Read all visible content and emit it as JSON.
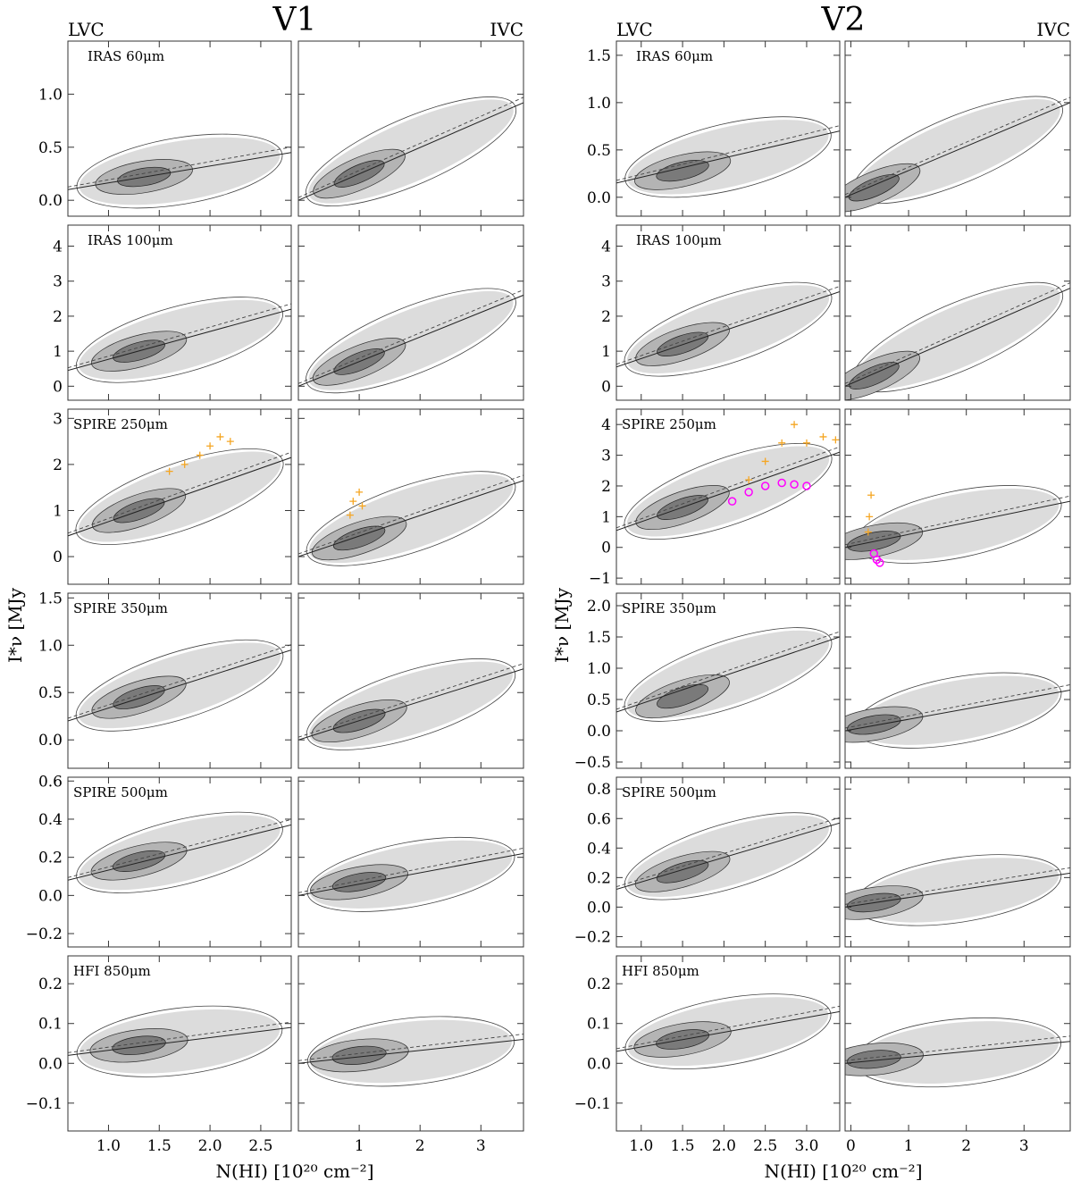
{
  "figure": {
    "titles": [
      "V1",
      "V2"
    ],
    "lvc_label": "LVC",
    "ivc_label": "IVC",
    "ylabel": "I*ν [MJy",
    "xlabel": "N(HI)  [10²⁰ cm⁻²]"
  },
  "chart_data": [
    {
      "type": "scatter",
      "group": "V1",
      "columns": [
        "LVC",
        "IVC"
      ],
      "x_ticks": {
        "LVC": [
          "1.0",
          "1.5",
          "2.0",
          "2.5"
        ],
        "IVC": [
          "1",
          "2",
          "3"
        ]
      },
      "x_range": {
        "LVC": [
          0.6,
          2.8
        ],
        "IVC": [
          0.0,
          3.7
        ]
      },
      "rows": [
        {
          "band": "IRAS 60μm",
          "ylim": [
            -0.15,
            1.5
          ],
          "yticks": [
            "0.0",
            "0.5",
            "1.0"
          ],
          "LVC": {
            "fit": [
              [
                0.6,
                0.1
              ],
              [
                2.8,
                0.45
              ]
            ],
            "peak": [
              1.35,
              0.22
            ]
          },
          "IVC": {
            "fit": [
              [
                0.0,
                0.0
              ],
              [
                3.7,
                0.92
              ]
            ],
            "peak": [
              1.0,
              0.25
            ]
          }
        },
        {
          "band": "IRAS 100μm",
          "ylim": [
            -0.4,
            4.6
          ],
          "yticks": [
            "0",
            "1",
            "2",
            "3",
            "4"
          ],
          "LVC": {
            "fit": [
              [
                0.6,
                0.45
              ],
              [
                2.8,
                2.2
              ]
            ],
            "peak": [
              1.3,
              1.0
            ]
          },
          "IVC": {
            "fit": [
              [
                0.0,
                0.0
              ],
              [
                3.7,
                2.6
              ]
            ],
            "peak": [
              1.0,
              0.7
            ]
          }
        },
        {
          "band": "SPIRE 250μm",
          "ylim": [
            -0.6,
            3.2
          ],
          "yticks": [
            "0",
            "1",
            "2",
            "3"
          ],
          "LVC": {
            "fit": [
              [
                0.6,
                0.45
              ],
              [
                2.8,
                2.15
              ]
            ],
            "peak": [
              1.3,
              1.0
            ],
            "scatter_orange": {
              "x": [
                1.6,
                1.75,
                1.9,
                2.0,
                2.1,
                2.2
              ],
              "y": [
                1.85,
                2.0,
                2.2,
                2.4,
                2.6,
                2.5
              ]
            }
          },
          "IVC": {
            "fit": [
              [
                0.0,
                0.0
              ],
              [
                3.7,
                1.65
              ]
            ],
            "peak": [
              1.0,
              0.4
            ],
            "scatter_orange": {
              "x": [
                0.85,
                0.9,
                1.0,
                1.05
              ],
              "y": [
                0.9,
                1.2,
                1.4,
                1.1
              ]
            }
          }
        },
        {
          "band": "SPIRE 350μm",
          "ylim": [
            -0.3,
            1.55
          ],
          "yticks": [
            "0.0",
            "0.5",
            "1.0",
            "1.5"
          ],
          "LVC": {
            "fit": [
              [
                0.6,
                0.2
              ],
              [
                2.8,
                0.95
              ]
            ],
            "peak": [
              1.3,
              0.45
            ]
          },
          "IVC": {
            "fit": [
              [
                0.0,
                0.0
              ],
              [
                3.7,
                0.75
              ]
            ],
            "peak": [
              1.0,
              0.2
            ]
          }
        },
        {
          "band": "SPIRE 500μm",
          "ylim": [
            -0.27,
            0.62
          ],
          "yticks": [
            "−0.2",
            "0.0",
            "0.2",
            "0.4",
            "0.6"
          ],
          "LVC": {
            "fit": [
              [
                0.6,
                0.08
              ],
              [
                2.8,
                0.37
              ]
            ],
            "peak": [
              1.3,
              0.18
            ]
          },
          "IVC": {
            "fit": [
              [
                0.0,
                0.0
              ],
              [
                3.7,
                0.22
              ]
            ],
            "peak": [
              1.0,
              0.07
            ]
          }
        },
        {
          "band": "HFI 850μm",
          "ylim": [
            -0.17,
            0.27
          ],
          "yticks": [
            "−0.1",
            "0.0",
            "0.1",
            "0.2"
          ],
          "LVC": {
            "fit": [
              [
                0.6,
                0.02
              ],
              [
                2.8,
                0.09
              ]
            ],
            "peak": [
              1.3,
              0.045
            ]
          },
          "IVC": {
            "fit": [
              [
                0.0,
                0.0
              ],
              [
                3.7,
                0.06
              ]
            ],
            "peak": [
              1.0,
              0.02
            ]
          }
        }
      ]
    },
    {
      "type": "scatter",
      "group": "V2",
      "columns": [
        "LVC",
        "IVC"
      ],
      "x_ticks": {
        "LVC": [
          "1.0",
          "1.5",
          "2.0",
          "2.5",
          "3.0"
        ],
        "IVC": [
          "0",
          "1",
          "2",
          "3"
        ]
      },
      "x_range": {
        "LVC": [
          0.7,
          3.4
        ],
        "IVC": [
          -0.1,
          3.8
        ]
      },
      "rows": [
        {
          "band": "IRAS 60μm",
          "ylim": [
            -0.2,
            1.65
          ],
          "yticks": [
            "0.0",
            "0.5",
            "1.0",
            "1.5"
          ],
          "LVC": {
            "fit": [
              [
                0.7,
                0.15
              ],
              [
                3.4,
                0.7
              ]
            ],
            "peak": [
              1.5,
              0.28
            ]
          },
          "IVC": {
            "fit": [
              [
                -0.1,
                0.0
              ],
              [
                3.8,
                1.0
              ]
            ],
            "peak": [
              0.4,
              0.1
            ]
          }
        },
        {
          "band": "IRAS 100μm",
          "ylim": [
            -0.4,
            4.6
          ],
          "yticks": [
            "0",
            "1",
            "2",
            "3",
            "4"
          ],
          "LVC": {
            "fit": [
              [
                0.7,
                0.55
              ],
              [
                3.4,
                2.7
              ]
            ],
            "peak": [
              1.5,
              1.2
            ]
          },
          "IVC": {
            "fit": [
              [
                -0.1,
                0.0
              ],
              [
                3.8,
                2.8
              ]
            ],
            "peak": [
              0.4,
              0.3
            ]
          }
        },
        {
          "band": "SPIRE 250μm",
          "ylim": [
            -1.2,
            4.5
          ],
          "yticks": [
            "−1",
            "0",
            "1",
            "2",
            "3",
            "4"
          ],
          "LVC": {
            "fit": [
              [
                0.7,
                0.55
              ],
              [
                3.4,
                3.1
              ]
            ],
            "peak": [
              1.5,
              1.3
            ],
            "scatter_orange": {
              "x": [
                2.3,
                2.5,
                2.7,
                2.85,
                3.0,
                3.2,
                3.35
              ],
              "y": [
                2.2,
                2.8,
                3.4,
                4.0,
                3.4,
                3.6,
                3.5
              ]
            },
            "scatter_magenta": {
              "x": [
                2.1,
                2.3,
                2.5,
                2.7,
                2.85,
                3.0
              ],
              "y": [
                1.5,
                1.8,
                2.0,
                2.1,
                2.05,
                2.0
              ]
            }
          },
          "IVC": {
            "fit": [
              [
                -0.1,
                0.0
              ],
              [
                3.8,
                1.5
              ]
            ],
            "peak": [
              0.4,
              0.2
            ],
            "scatter_orange": {
              "x": [
                0.3,
                0.32,
                0.35
              ],
              "y": [
                0.5,
                1.0,
                1.7
              ]
            },
            "scatter_magenta": {
              "x": [
                0.4,
                0.45,
                0.5
              ],
              "y": [
                -0.2,
                -0.4,
                -0.5
              ]
            }
          }
        },
        {
          "band": "SPIRE 350μm",
          "ylim": [
            -0.6,
            2.2
          ],
          "yticks": [
            "−0.5",
            "0.0",
            "0.5",
            "1.0",
            "1.5",
            "2.0"
          ],
          "LVC": {
            "fit": [
              [
                0.7,
                0.3
              ],
              [
                3.4,
                1.5
              ]
            ],
            "peak": [
              1.5,
              0.55
            ]
          },
          "IVC": {
            "fit": [
              [
                -0.1,
                0.0
              ],
              [
                3.8,
                0.65
              ]
            ],
            "peak": [
              0.4,
              0.1
            ]
          }
        },
        {
          "band": "SPIRE 500μm",
          "ylim": [
            -0.27,
            0.88
          ],
          "yticks": [
            "−0.2",
            "0.0",
            "0.2",
            "0.4",
            "0.6",
            "0.8"
          ],
          "LVC": {
            "fit": [
              [
                0.7,
                0.12
              ],
              [
                3.4,
                0.57
              ]
            ],
            "peak": [
              1.5,
              0.24
            ]
          },
          "IVC": {
            "fit": [
              [
                -0.1,
                0.0
              ],
              [
                3.8,
                0.23
              ]
            ],
            "peak": [
              0.4,
              0.03
            ]
          }
        },
        {
          "band": "HFI 850μm",
          "ylim": [
            -0.17,
            0.27
          ],
          "yticks": [
            "−0.1",
            "0.0",
            "0.1",
            "0.2"
          ],
          "LVC": {
            "fit": [
              [
                0.7,
                0.03
              ],
              [
                3.4,
                0.13
              ]
            ],
            "peak": [
              1.5,
              0.06
            ]
          },
          "IVC": {
            "fit": [
              [
                -0.1,
                0.0
              ],
              [
                3.8,
                0.055
              ]
            ],
            "peak": [
              0.4,
              0.01
            ]
          }
        }
      ]
    }
  ]
}
